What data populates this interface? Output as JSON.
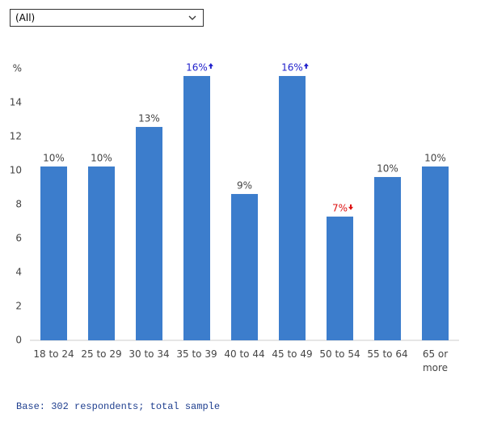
{
  "filter": {
    "selected": "(All)"
  },
  "chart_data": {
    "type": "bar",
    "y_label": "%",
    "categories": [
      "18 to 24",
      "25 to 29",
      "30 to 34",
      "35 to 39",
      "40 to 44",
      "45 to 49",
      "50 to 54",
      "55 to 64",
      "65 or more"
    ],
    "values": [
      10.24,
      10.24,
      12.57,
      15.57,
      8.62,
      15.57,
      7.29,
      9.62,
      10.24
    ],
    "value_labels": [
      "10%",
      "10%",
      "13%",
      "16%",
      "9%",
      "16%",
      "7%",
      "10%",
      "10%"
    ],
    "significance": [
      null,
      null,
      null,
      "up",
      null,
      "up",
      "down",
      null,
      null
    ],
    "color": "#3c7dcc",
    "ylim": [
      0,
      16
    ],
    "yticks": [
      0,
      2,
      4,
      6,
      8,
      10,
      12,
      14
    ],
    "grid": false
  },
  "footer": "Base: 302 respondents; total sample"
}
